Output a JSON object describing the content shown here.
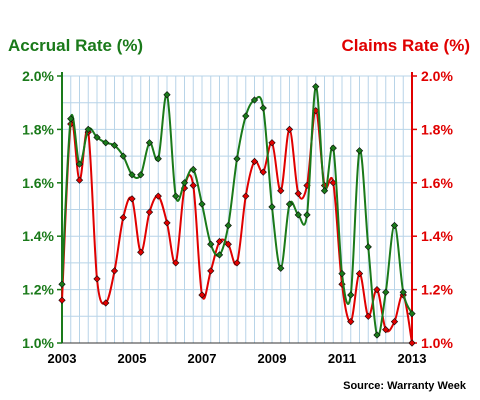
{
  "chart_data": {
    "type": "line",
    "left_axis_title": "Accrual Rate (%)",
    "right_axis_title": "Claims Rate (%)",
    "source": "Source: Warranty Week",
    "x_ticks": [
      "2003",
      "2005",
      "2007",
      "2009",
      "2011",
      "2013"
    ],
    "y_ticks": [
      "1.0%",
      "1.2%",
      "1.4%",
      "1.6%",
      "1.8%",
      "2.0%"
    ],
    "ylim": [
      1.0,
      2.0
    ],
    "xlim": [
      2003.0,
      2013.0
    ],
    "grid": true,
    "colors": {
      "accrual": "#1a7a1a",
      "claims": "#e00000",
      "left_axis": "#1a7a1a",
      "right_axis": "#e00000",
      "grid": "#b8d4e8"
    },
    "series": [
      {
        "name": "Accrual Rate (%)",
        "axis": "left",
        "x": [
          2003.0,
          2003.25,
          2003.5,
          2003.75,
          2004.0,
          2004.25,
          2004.5,
          2004.75,
          2005.0,
          2005.25,
          2005.5,
          2005.75,
          2006.0,
          2006.25,
          2006.5,
          2006.75,
          2007.0,
          2007.25,
          2007.5,
          2007.75,
          2008.0,
          2008.25,
          2008.5,
          2008.75,
          2009.0,
          2009.25,
          2009.5,
          2009.75,
          2010.0,
          2010.25,
          2010.5,
          2010.75,
          2011.0,
          2011.25,
          2011.5,
          2011.75,
          2012.0,
          2012.25,
          2012.5,
          2012.75,
          2013.0
        ],
        "values": [
          1.22,
          1.84,
          1.67,
          1.8,
          1.77,
          1.75,
          1.74,
          1.7,
          1.63,
          1.63,
          1.75,
          1.69,
          1.93,
          1.55,
          1.6,
          1.65,
          1.52,
          1.37,
          1.33,
          1.44,
          1.69,
          1.85,
          1.91,
          1.88,
          1.51,
          1.28,
          1.52,
          1.48,
          1.48,
          1.96,
          1.57,
          1.73,
          1.26,
          1.18,
          1.72,
          1.36,
          1.03,
          1.19,
          1.44,
          1.19,
          1.11
        ]
      },
      {
        "name": "Claims Rate (%)",
        "axis": "right",
        "x": [
          2003.0,
          2003.25,
          2003.5,
          2003.75,
          2004.0,
          2004.25,
          2004.5,
          2004.75,
          2005.0,
          2005.25,
          2005.5,
          2005.75,
          2006.0,
          2006.25,
          2006.5,
          2006.75,
          2007.0,
          2007.25,
          2007.5,
          2007.75,
          2008.0,
          2008.25,
          2008.5,
          2008.75,
          2009.0,
          2009.25,
          2009.5,
          2009.75,
          2010.0,
          2010.25,
          2010.5,
          2010.75,
          2011.0,
          2011.25,
          2011.5,
          2011.75,
          2012.0,
          2012.25,
          2012.5,
          2012.75,
          2013.0
        ],
        "values": [
          1.16,
          1.82,
          1.61,
          1.79,
          1.24,
          1.15,
          1.27,
          1.47,
          1.54,
          1.34,
          1.49,
          1.55,
          1.45,
          1.3,
          1.58,
          1.59,
          1.18,
          1.27,
          1.38,
          1.37,
          1.3,
          1.55,
          1.68,
          1.64,
          1.75,
          1.57,
          1.8,
          1.56,
          1.59,
          1.87,
          1.59,
          1.6,
          1.22,
          1.08,
          1.26,
          1.1,
          1.2,
          1.05,
          1.08,
          1.18,
          1.0
        ]
      }
    ]
  }
}
